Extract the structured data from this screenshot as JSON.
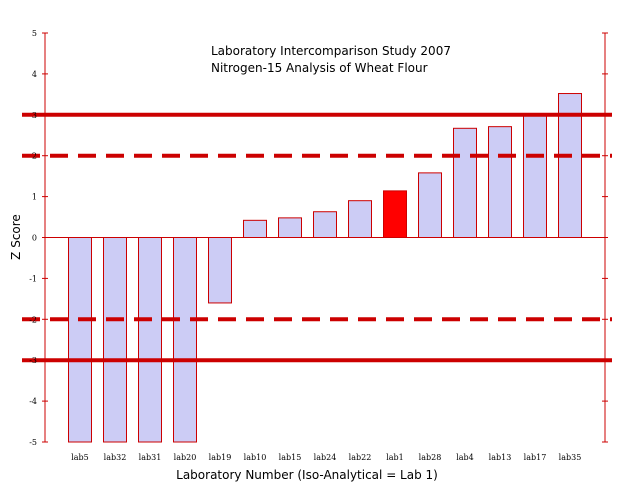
{
  "chart_data": {
    "type": "bar",
    "title": "Laboratory Intercomparison Study 2007",
    "subtitle": "Nitrogen-15 Analysis of Wheat Flour",
    "xlabel": "Laboratory Number (Iso-Analytical = Lab 1)",
    "ylabel": "Z Score",
    "ylim": [
      -5,
      5
    ],
    "yticks": [
      "5",
      "4",
      "3",
      "2",
      "1",
      "0",
      "-1",
      "-2",
      "-3",
      "-4",
      "-5"
    ],
    "categories": [
      "lab5",
      "lab32",
      "lab31",
      "lab20",
      "lab19",
      "lab10",
      "lab15",
      "lab24",
      "lab22",
      "lab1",
      "lab28",
      "lab4",
      "lab13",
      "lab17",
      "lab35"
    ],
    "values": [
      -5.0,
      -5.0,
      -5.0,
      -5.0,
      -1.6,
      0.42,
      0.48,
      0.63,
      0.9,
      1.14,
      1.58,
      2.67,
      2.71,
      3.02,
      3.52
    ],
    "highlight_category": "lab1",
    "reference_lines": [
      {
        "value": 3,
        "style": "solid"
      },
      {
        "value": 2,
        "style": "dashed"
      },
      {
        "value": -2,
        "style": "dashed"
      },
      {
        "value": -3,
        "style": "solid"
      }
    ],
    "colors": {
      "bar_fill": "#ccccf5",
      "bar_stroke": "#cc0000",
      "highlight_fill": "#ff0000",
      "reference_line": "#cc0000",
      "axis": "#cc0000"
    },
    "grid": false,
    "legend": "none"
  }
}
